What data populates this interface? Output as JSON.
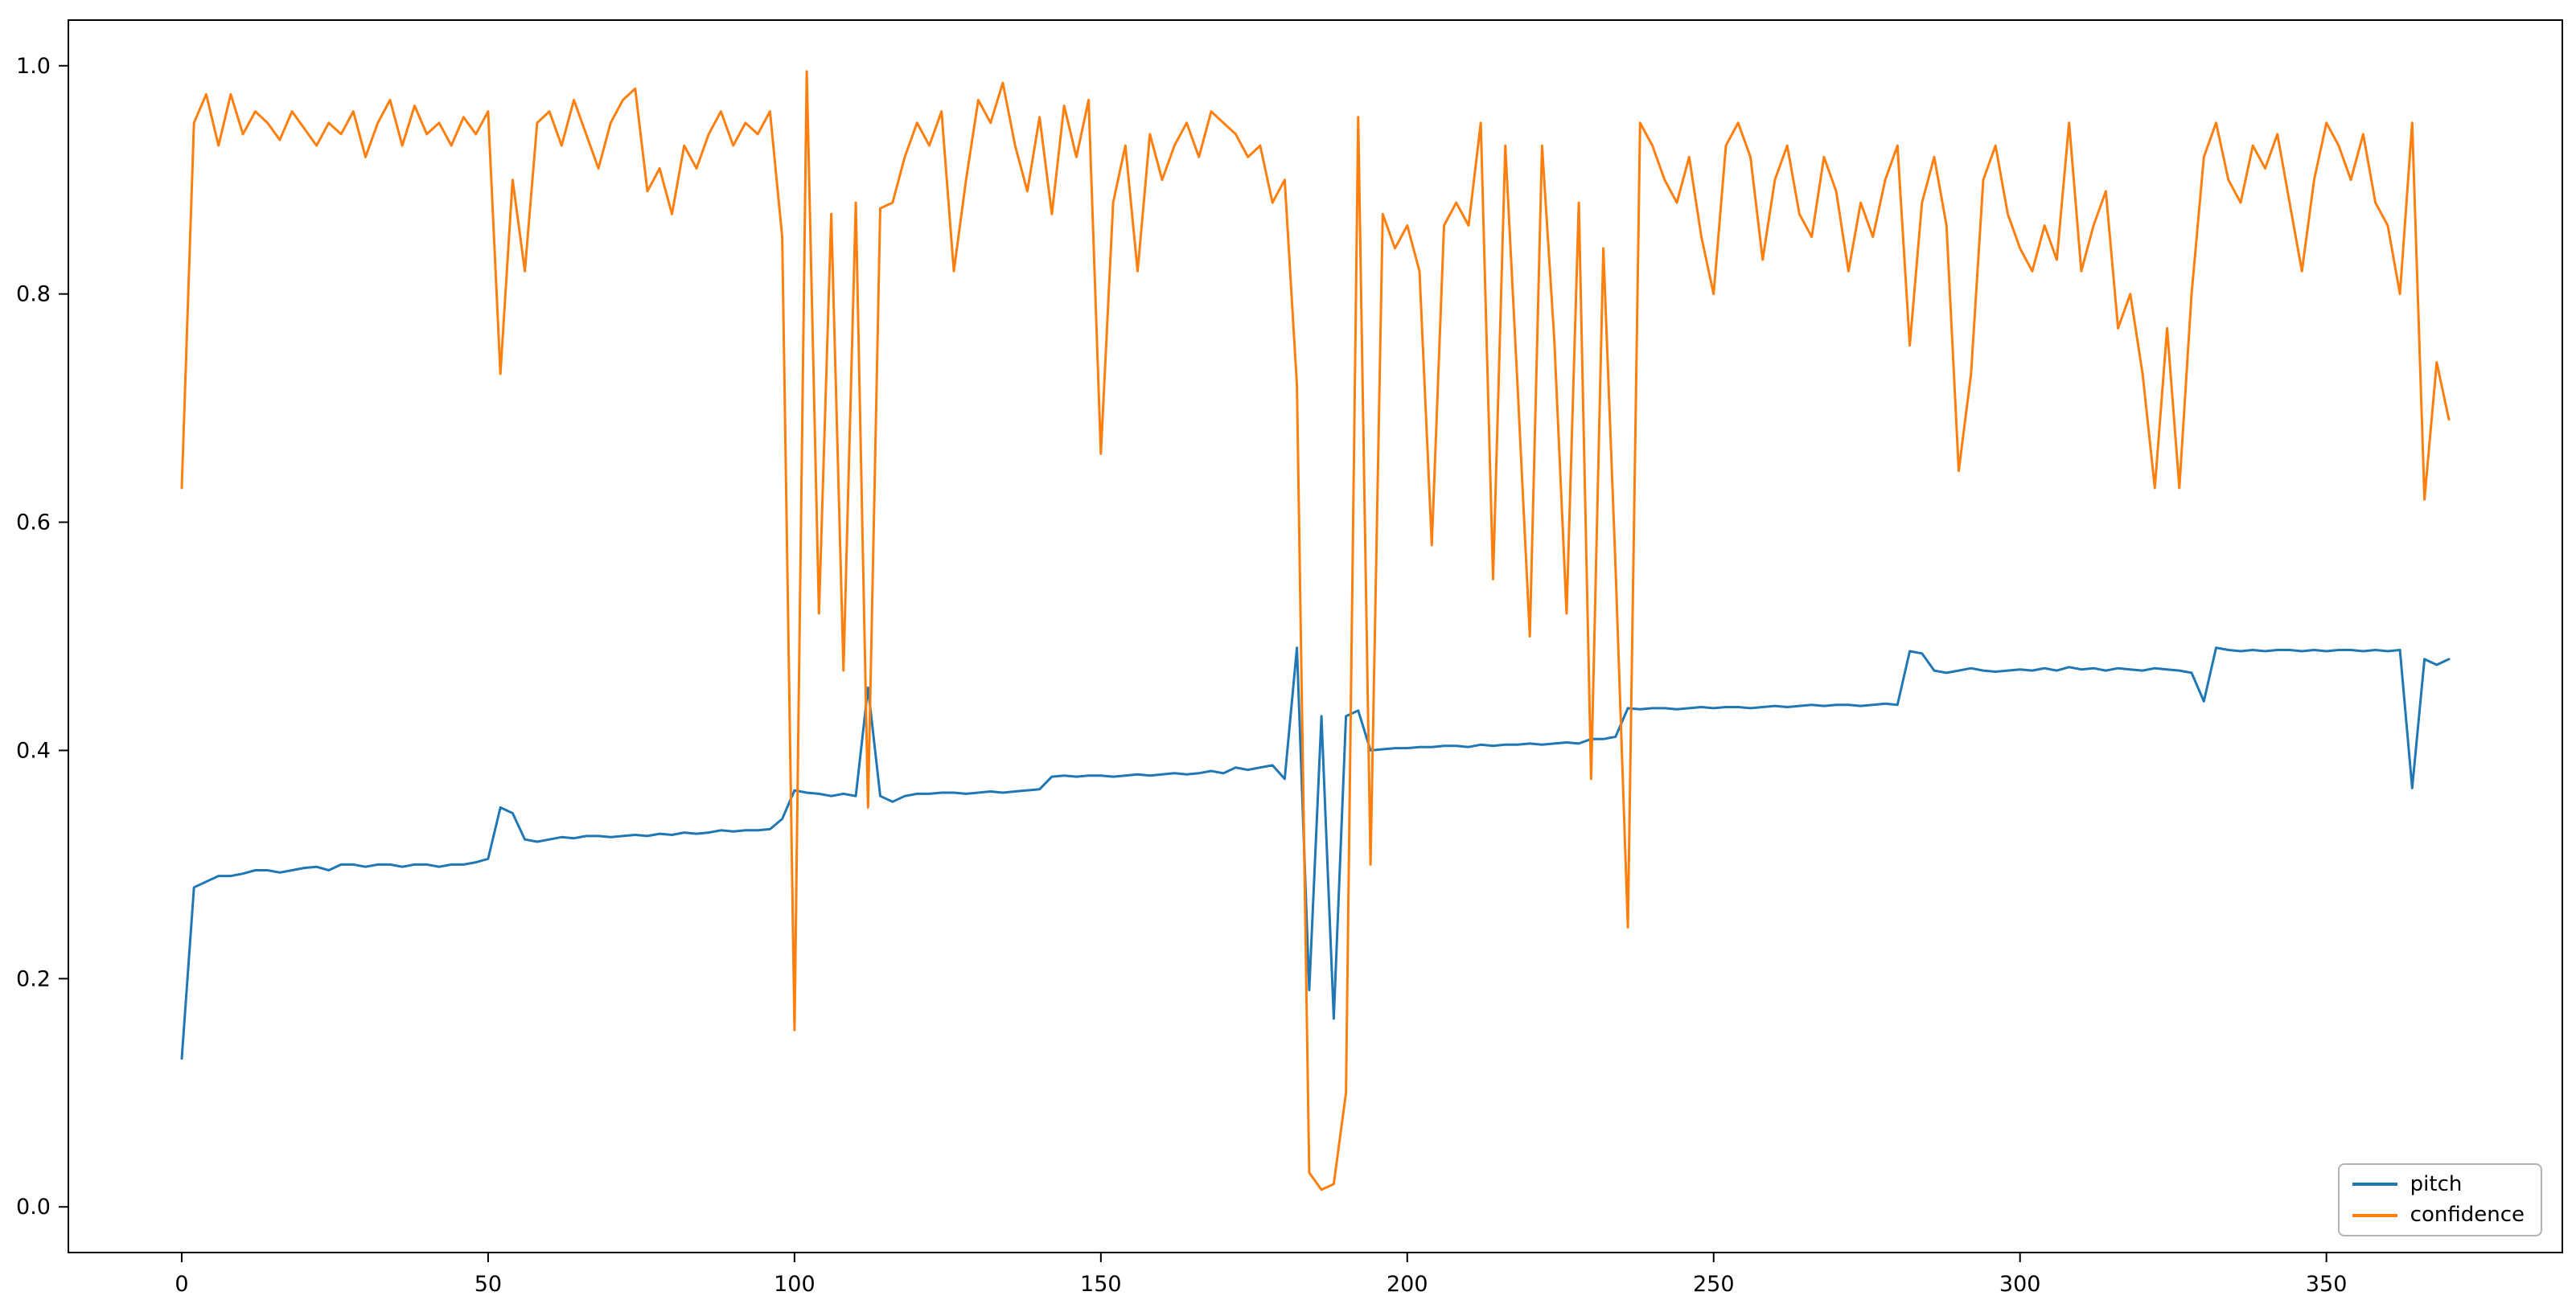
{
  "figure": {
    "background_color": "#ffffff",
    "axes_edge_color": "#000000",
    "tick_color": "#000000"
  },
  "legend": {
    "position": "lower right",
    "entries": [
      {
        "label": "pitch",
        "color": "#1f77b4"
      },
      {
        "label": "confidence",
        "color": "#ff7f0e"
      }
    ]
  },
  "chart_data": {
    "type": "line",
    "title": "",
    "xlabel": "",
    "ylabel": "",
    "grid": false,
    "xlim": [
      -18.5,
      388.5
    ],
    "ylim": [
      -0.04,
      1.04
    ],
    "xticks": [
      0,
      50,
      100,
      150,
      200,
      250,
      300,
      350
    ],
    "xtick_labels": [
      "0",
      "50",
      "100",
      "150",
      "200",
      "250",
      "300",
      "350"
    ],
    "yticks": [
      0.0,
      0.2,
      0.4,
      0.6,
      0.8,
      1.0
    ],
    "ytick_labels": [
      "0.0",
      "0.2",
      "0.4",
      "0.6",
      "0.8",
      "1.0"
    ],
    "x": [
      0,
      2,
      4,
      6,
      8,
      10,
      12,
      14,
      16,
      18,
      20,
      22,
      24,
      26,
      28,
      30,
      32,
      34,
      36,
      38,
      40,
      42,
      44,
      46,
      48,
      50,
      52,
      54,
      56,
      58,
      60,
      62,
      64,
      66,
      68,
      70,
      72,
      74,
      76,
      78,
      80,
      82,
      84,
      86,
      88,
      90,
      92,
      94,
      96,
      98,
      100,
      102,
      104,
      106,
      108,
      110,
      112,
      114,
      116,
      118,
      120,
      122,
      124,
      126,
      128,
      130,
      132,
      134,
      136,
      138,
      140,
      142,
      144,
      146,
      148,
      150,
      152,
      154,
      156,
      158,
      160,
      162,
      164,
      166,
      168,
      170,
      172,
      174,
      176,
      178,
      180,
      182,
      184,
      186,
      188,
      190,
      192,
      194,
      196,
      198,
      200,
      202,
      204,
      206,
      208,
      210,
      212,
      214,
      216,
      218,
      220,
      222,
      224,
      226,
      228,
      230,
      232,
      234,
      236,
      238,
      240,
      242,
      244,
      246,
      248,
      250,
      252,
      254,
      256,
      258,
      260,
      262,
      264,
      266,
      268,
      270,
      272,
      274,
      276,
      278,
      280,
      282,
      284,
      286,
      288,
      290,
      292,
      294,
      296,
      298,
      300,
      302,
      304,
      306,
      308,
      310,
      312,
      314,
      316,
      318,
      320,
      322,
      324,
      326,
      328,
      330,
      332,
      334,
      336,
      338,
      340,
      342,
      344,
      346,
      348,
      350,
      352,
      354,
      356,
      358,
      360,
      362,
      364,
      366,
      368,
      370
    ],
    "series": [
      {
        "name": "pitch",
        "color": "#1f77b4",
        "values": [
          0.13,
          0.28,
          0.285,
          0.29,
          0.29,
          0.292,
          0.295,
          0.295,
          0.293,
          0.295,
          0.297,
          0.298,
          0.295,
          0.3,
          0.3,
          0.298,
          0.3,
          0.3,
          0.298,
          0.3,
          0.3,
          0.298,
          0.3,
          0.3,
          0.302,
          0.305,
          0.35,
          0.345,
          0.322,
          0.32,
          0.322,
          0.324,
          0.323,
          0.325,
          0.325,
          0.324,
          0.325,
          0.326,
          0.325,
          0.327,
          0.326,
          0.328,
          0.327,
          0.328,
          0.33,
          0.329,
          0.33,
          0.33,
          0.331,
          0.34,
          0.365,
          0.363,
          0.362,
          0.36,
          0.362,
          0.36,
          0.455,
          0.36,
          0.355,
          0.36,
          0.362,
          0.362,
          0.363,
          0.363,
          0.362,
          0.363,
          0.364,
          0.363,
          0.364,
          0.365,
          0.366,
          0.377,
          0.378,
          0.377,
          0.378,
          0.378,
          0.377,
          0.378,
          0.379,
          0.378,
          0.379,
          0.38,
          0.379,
          0.38,
          0.382,
          0.38,
          0.385,
          0.383,
          0.385,
          0.387,
          0.375,
          0.49,
          0.19,
          0.43,
          0.165,
          0.43,
          0.435,
          0.4,
          0.401,
          0.402,
          0.402,
          0.403,
          0.403,
          0.404,
          0.404,
          0.403,
          0.405,
          0.404,
          0.405,
          0.405,
          0.406,
          0.405,
          0.406,
          0.407,
          0.406,
          0.41,
          0.41,
          0.412,
          0.437,
          0.436,
          0.437,
          0.437,
          0.436,
          0.437,
          0.438,
          0.437,
          0.438,
          0.438,
          0.437,
          0.438,
          0.439,
          0.438,
          0.439,
          0.44,
          0.439,
          0.44,
          0.44,
          0.439,
          0.44,
          0.441,
          0.44,
          0.487,
          0.485,
          0.47,
          0.468,
          0.47,
          0.472,
          0.47,
          0.469,
          0.47,
          0.471,
          0.47,
          0.472,
          0.47,
          0.473,
          0.471,
          0.472,
          0.47,
          0.472,
          0.471,
          0.47,
          0.472,
          0.471,
          0.47,
          0.468,
          0.443,
          0.49,
          0.488,
          0.487,
          0.488,
          0.487,
          0.488,
          0.488,
          0.487,
          0.488,
          0.487,
          0.488,
          0.488,
          0.487,
          0.488,
          0.487,
          0.488,
          0.367,
          0.48,
          0.475,
          0.48
        ]
      },
      {
        "name": "confidence",
        "color": "#ff7f0e",
        "values": [
          0.63,
          0.95,
          0.975,
          0.93,
          0.975,
          0.94,
          0.96,
          0.95,
          0.935,
          0.96,
          0.945,
          0.93,
          0.95,
          0.94,
          0.96,
          0.92,
          0.95,
          0.97,
          0.93,
          0.965,
          0.94,
          0.95,
          0.93,
          0.955,
          0.94,
          0.96,
          0.73,
          0.9,
          0.82,
          0.95,
          0.96,
          0.93,
          0.97,
          0.94,
          0.91,
          0.95,
          0.97,
          0.98,
          0.89,
          0.91,
          0.87,
          0.93,
          0.91,
          0.94,
          0.96,
          0.93,
          0.95,
          0.94,
          0.96,
          0.85,
          0.155,
          0.995,
          0.52,
          0.87,
          0.47,
          0.88,
          0.35,
          0.875,
          0.88,
          0.92,
          0.95,
          0.93,
          0.96,
          0.82,
          0.9,
          0.97,
          0.95,
          0.985,
          0.93,
          0.89,
          0.955,
          0.87,
          0.965,
          0.92,
          0.97,
          0.66,
          0.88,
          0.93,
          0.82,
          0.94,
          0.9,
          0.93,
          0.95,
          0.92,
          0.96,
          0.95,
          0.94,
          0.92,
          0.93,
          0.88,
          0.9,
          0.72,
          0.03,
          0.015,
          0.02,
          0.1,
          0.955,
          0.3,
          0.87,
          0.84,
          0.86,
          0.82,
          0.58,
          0.86,
          0.88,
          0.86,
          0.95,
          0.55,
          0.93,
          0.72,
          0.5,
          0.93,
          0.76,
          0.52,
          0.88,
          0.375,
          0.84,
          0.56,
          0.245,
          0.95,
          0.93,
          0.9,
          0.88,
          0.92,
          0.85,
          0.8,
          0.93,
          0.95,
          0.92,
          0.83,
          0.9,
          0.93,
          0.87,
          0.85,
          0.92,
          0.89,
          0.82,
          0.88,
          0.85,
          0.9,
          0.93,
          0.755,
          0.88,
          0.92,
          0.86,
          0.645,
          0.73,
          0.9,
          0.93,
          0.87,
          0.84,
          0.82,
          0.86,
          0.83,
          0.95,
          0.82,
          0.86,
          0.89,
          0.77,
          0.8,
          0.73,
          0.63,
          0.77,
          0.63,
          0.8,
          0.92,
          0.95,
          0.9,
          0.88,
          0.93,
          0.91,
          0.94,
          0.88,
          0.82,
          0.9,
          0.95,
          0.93,
          0.9,
          0.94,
          0.88,
          0.86,
          0.8,
          0.95,
          0.62,
          0.74,
          0.69
        ]
      }
    ]
  }
}
